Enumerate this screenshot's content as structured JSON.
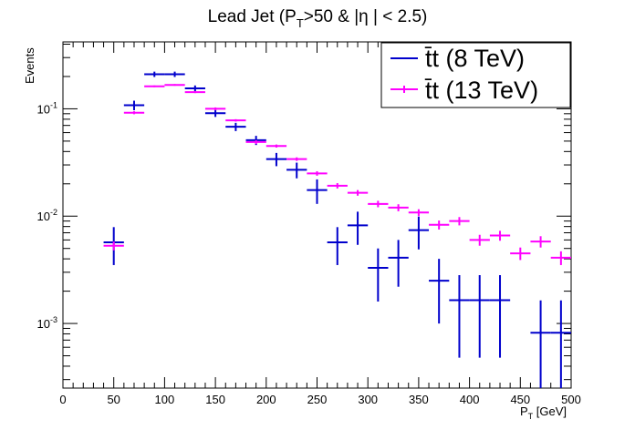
{
  "chart_data": {
    "type": "scatter",
    "title": "Lead Jet (P",
    "title_sub": "T",
    "title_rest": ">50 & |η | < 2.5)",
    "xlabel": "P",
    "xlabel_sub": "T",
    "xlabel_rest": " [GeV]",
    "ylabel": "Events",
    "xlim": [
      0,
      500
    ],
    "ylim": [
      0.00025,
      0.42
    ],
    "yscale": "log",
    "x_ticks": [
      0,
      50,
      100,
      150,
      200,
      250,
      300,
      350,
      400,
      450,
      500
    ],
    "y_ticks": [
      {
        "base": "10",
        "exp": "-1",
        "value": 0.1
      },
      {
        "base": "10",
        "exp": "-2",
        "value": 0.01
      },
      {
        "base": "10",
        "exp": "-3",
        "value": 0.001
      }
    ],
    "legend_position": "top-right",
    "series": [
      {
        "name": "t̄t (8 TeV)",
        "color": "#0000cc",
        "x": [
          50,
          70,
          90,
          110,
          130,
          150,
          170,
          190,
          210,
          230,
          250,
          270,
          290,
          310,
          330,
          350,
          370,
          390,
          410,
          430,
          470,
          490
        ],
        "y": [
          0.0057,
          0.108,
          0.21,
          0.21,
          0.155,
          0.091,
          0.068,
          0.051,
          0.034,
          0.027,
          0.0175,
          0.0057,
          0.0082,
          0.0033,
          0.0041,
          0.0074,
          0.0025,
          0.00165,
          0.00165,
          0.00165,
          0.00082,
          0.00082
        ],
        "err_lo": [
          0.0022,
          0.011,
          0.012,
          0.012,
          0.01,
          0.007,
          0.006,
          0.005,
          0.0048,
          0.0045,
          0.0045,
          0.0022,
          0.0028,
          0.0017,
          0.0019,
          0.0025,
          0.0015,
          0.00117,
          0.00117,
          0.00117,
          0.00082,
          0.00082
        ],
        "err_hi": [
          0.0022,
          0.011,
          0.012,
          0.012,
          0.01,
          0.007,
          0.006,
          0.005,
          0.0048,
          0.0045,
          0.0045,
          0.0022,
          0.0028,
          0.0017,
          0.0019,
          0.0025,
          0.0015,
          0.00117,
          0.00117,
          0.00117,
          0.00082,
          0.00082
        ]
      },
      {
        "name": "t̄t (13 TeV)",
        "color": "#ff00ff",
        "x": [
          50,
          70,
          90,
          110,
          130,
          150,
          170,
          190,
          210,
          230,
          250,
          270,
          290,
          310,
          330,
          350,
          370,
          390,
          410,
          430,
          450,
          470,
          490
        ],
        "y": [
          0.0053,
          0.092,
          0.162,
          0.167,
          0.143,
          0.1,
          0.078,
          0.049,
          0.045,
          0.034,
          0.025,
          0.0192,
          0.0165,
          0.013,
          0.012,
          0.0108,
          0.0083,
          0.009,
          0.006,
          0.0066,
          0.0045,
          0.0058,
          0.0041
        ],
        "err_lo": [
          0.0005,
          0.003,
          0.003,
          0.003,
          0.003,
          0.003,
          0.002,
          0.002,
          0.0015,
          0.0013,
          0.0012,
          0.0011,
          0.001,
          0.0009,
          0.0009,
          0.0008,
          0.0008,
          0.0008,
          0.0007,
          0.0007,
          0.0006,
          0.0007,
          0.0006
        ],
        "err_hi": [
          0.0005,
          0.003,
          0.003,
          0.003,
          0.003,
          0.003,
          0.002,
          0.002,
          0.0015,
          0.0013,
          0.0012,
          0.0011,
          0.001,
          0.0009,
          0.0009,
          0.0008,
          0.0008,
          0.0008,
          0.0007,
          0.0007,
          0.0006,
          0.0007,
          0.0006
        ],
        "x_halfwidth": 10
      }
    ]
  }
}
